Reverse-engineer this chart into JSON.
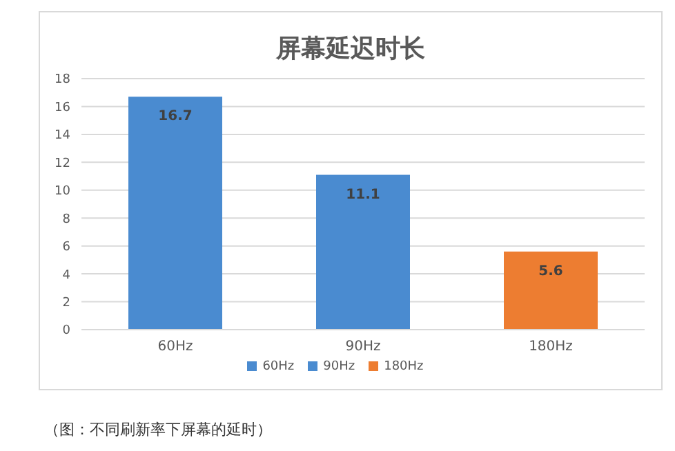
{
  "chart_data": {
    "type": "bar",
    "title": "屏幕延迟时长",
    "categories": [
      "60Hz",
      "90Hz",
      "180Hz"
    ],
    "series": [
      {
        "name": "60Hz",
        "color": "#4a8bd0",
        "values": [
          16.7,
          null,
          null
        ]
      },
      {
        "name": "90Hz",
        "color": "#4a8bd0",
        "values": [
          null,
          11.1,
          null
        ]
      },
      {
        "name": "180Hz",
        "color": "#ed7d31",
        "values": [
          null,
          null,
          5.6
        ]
      }
    ],
    "ylim": [
      0,
      18
    ],
    "yticks": [
      0,
      2,
      4,
      6,
      8,
      10,
      12,
      14,
      16,
      18
    ],
    "grid": "y",
    "legend": "bottom",
    "data_labels": true,
    "annotations": [
      "（图：不同刷新率下屏幕的延时）"
    ]
  }
}
